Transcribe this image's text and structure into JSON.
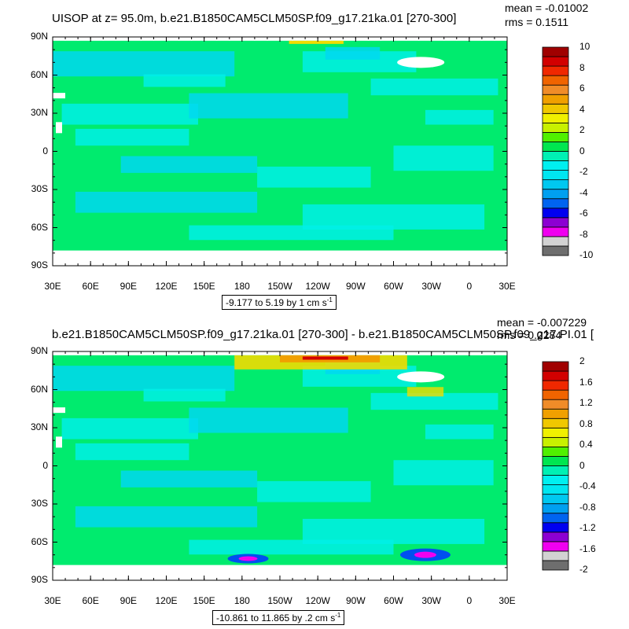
{
  "panel1": {
    "title": "UISOP at z=  95.0m, b.e21.B1850CAM5CLM50SP.f09_g17.21ka.01 [270-300]",
    "mean_text": "mean = -0.01002",
    "rms_text": "rms = 0.1511",
    "range_text": "-9.177 to 5.19 by 1 cm s",
    "range_unit_sup": "-1",
    "colorbar_labels": [
      "10",
      "8",
      "6",
      "4",
      "2",
      "0",
      "-2",
      "-4",
      "-6",
      "-8",
      "-10"
    ]
  },
  "panel2": {
    "title": "b.e21.B1850CAM5CLM50SP.f09_g17.21ka.01 [270-300] - b.e21.B1850CAM5CLM50SP.f09_g17.PI.01 [",
    "mean_text": "mean = -0.007229",
    "rms_text": "rms = 0.2284",
    "range_text": "-10.861 to 11.865 by .2 cm s",
    "range_unit_sup": "-1",
    "colorbar_labels": [
      "2",
      "1.6",
      "1.2",
      "0.8",
      "0.4",
      "0",
      "-0.4",
      "-0.8",
      "-1.2",
      "-1.6",
      "-2"
    ]
  },
  "lat_labels": [
    "90N",
    "60N",
    "30N",
    "0",
    "30S",
    "60S",
    "90S"
  ],
  "lon_labels": [
    "30E",
    "60E",
    "90E",
    "120E",
    "150E",
    "180",
    "150W",
    "120W",
    "90W",
    "60W",
    "30W",
    "0",
    "30E"
  ],
  "colorbar_colors": [
    "#6e6e6e",
    "#d2d2d2",
    "#f000f0",
    "#8c00d2",
    "#0000f0",
    "#0064f0",
    "#00a0f0",
    "#00c8f0",
    "#00e6f0",
    "#00f0f0",
    "#00f0b4",
    "#00e650",
    "#50f000",
    "#c8f000",
    "#f0f000",
    "#f0c800",
    "#f0a000",
    "#f08c28",
    "#f06400",
    "#f02800",
    "#d20000",
    "#a00000"
  ],
  "map_colors": {
    "base": "#00eb6e",
    "cyan": "#00f0e6",
    "light_cyan": "#00d8f0",
    "yellow": "#f0dc00",
    "orange": "#f0a000",
    "red": "#d20000",
    "blue": "#0050f0",
    "magenta": "#f000f0",
    "white": "#ffffff"
  }
}
